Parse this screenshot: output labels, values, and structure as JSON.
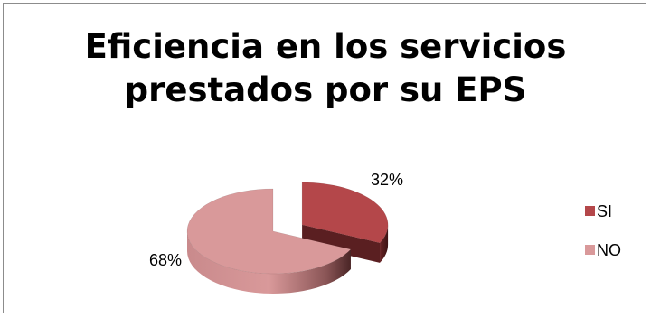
{
  "chart_data": {
    "type": "pie",
    "title_line1": "Eficiencia en los servicios",
    "title_line2": "prestados por su EPS",
    "categories": [
      "SI",
      "NO"
    ],
    "values": [
      32,
      68
    ],
    "data_labels": [
      "32%",
      "68%"
    ],
    "legend": [
      "SI",
      "NO"
    ],
    "legend_position": "right",
    "colors": {
      "SI": "#B4474A",
      "SI_dark": "#5a1f21",
      "NO": "#D9999A",
      "NO_dark": "#6b3a3b"
    },
    "style": "3d-exploded"
  }
}
